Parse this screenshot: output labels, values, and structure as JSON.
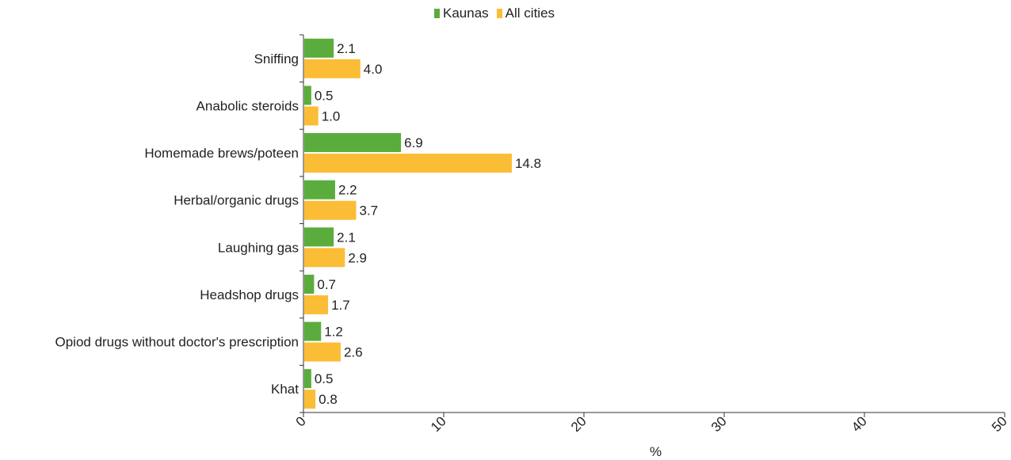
{
  "legend": {
    "items": [
      {
        "label": "Kaunas",
        "color": "#5aad3c"
      },
      {
        "label": "All cities",
        "color": "#fbbd35"
      }
    ]
  },
  "chart_data": {
    "type": "bar",
    "orientation": "horizontal",
    "categories": [
      "Sniffing",
      "Anabolic steroids",
      "Homemade brews/poteen",
      "Herbal/organic drugs",
      "Laughing gas",
      "Headshop drugs",
      "Opiod drugs without doctor's prescription",
      "Khat"
    ],
    "series": [
      {
        "name": "Kaunas",
        "color": "#5aad3c",
        "values": [
          2.1,
          0.5,
          6.9,
          2.2,
          2.1,
          0.7,
          1.2,
          0.5
        ],
        "labels": [
          "2.1",
          "0.5",
          "6.9",
          "2.2",
          "2.1",
          "0.7",
          "1.2",
          "0.5"
        ]
      },
      {
        "name": "All cities",
        "color": "#fbbd35",
        "values": [
          4.0,
          1.0,
          14.8,
          3.7,
          2.9,
          1.7,
          2.6,
          0.8
        ],
        "labels": [
          "4.0",
          "1.0",
          "14.8",
          "3.7",
          "2.9",
          "1.7",
          "2.6",
          "0.8"
        ]
      }
    ],
    "xlabel": "%",
    "xlim": [
      0,
      50
    ],
    "xticks": [
      0,
      10,
      20,
      30,
      40,
      50
    ],
    "xtick_labels": [
      "0",
      "10",
      "20",
      "30",
      "40",
      "50"
    ],
    "grid": false,
    "legend_position": "top-center"
  }
}
